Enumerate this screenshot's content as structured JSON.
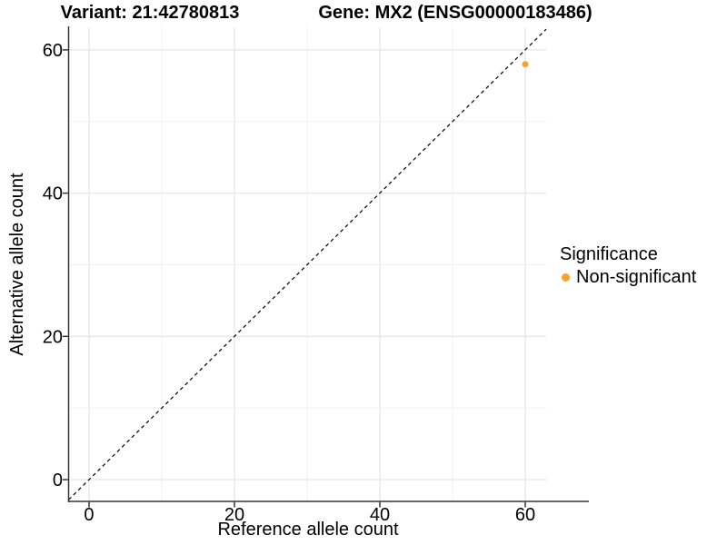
{
  "chart_data": {
    "type": "scatter",
    "titles": {
      "left": "Variant: 21:42780813",
      "right": "Gene: MX2 (ENSG00000183486)"
    },
    "xlabel": "Reference allele count",
    "ylabel": "Alternative allele count",
    "xlim": [
      -2.81,
      62.88
    ],
    "ylim": [
      -3.04,
      63.16
    ],
    "x_ticks": [
      0,
      20,
      40,
      60
    ],
    "y_ticks": [
      0,
      20,
      40,
      60
    ],
    "x_minor_ticks": [
      10,
      30,
      50
    ],
    "y_minor_ticks": [
      10,
      30,
      50
    ],
    "grid": true,
    "identity_line": {
      "style": "dashed",
      "equation": "y = x",
      "color": "#000000"
    },
    "series": [
      {
        "name": "Non-significant",
        "color": "#F9A229",
        "points": [
          {
            "x": 60,
            "y": 58
          }
        ]
      }
    ],
    "legend": {
      "title": "Significance",
      "position": "right",
      "items": [
        {
          "label": "Non-significant",
          "color": "#F9A229"
        }
      ]
    },
    "colors": {
      "axis_line": "#333333",
      "tick_mark": "#333333",
      "major_grid": "#e7e7e7",
      "minor_grid": "#f2f2f2",
      "text": "#000000",
      "background": "#ffffff"
    }
  }
}
